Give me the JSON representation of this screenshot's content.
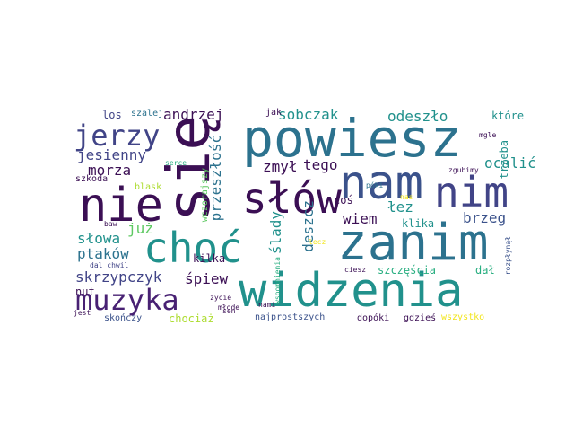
{
  "words": {
    "powiesz": "powiesz",
    "widzenia": "widzenia",
    "zanim": "zanim",
    "sie": "się",
    "slow": "słów",
    "nam": "nam",
    "nim": "nim",
    "nie": "nie",
    "choc": "choć",
    "muzyka": "muzyka",
    "jerzy": "jerzy",
    "andrzej": "andrzej",
    "sobczak": "sobczak",
    "odeszlo": "odeszło",
    "ktore": "które",
    "jesienny": "jesienny",
    "morza": "morza",
    "zmyl": "zmył",
    "tego": "tego",
    "przeszlosc": "przeszłość",
    "ocalic": "ocalić",
    "trzeba": "trzeba",
    "slady": "ślady",
    "deszcz": "deszcz",
    "wiem": "wiem",
    "lez": "łez",
    "brzeg": "brzeg",
    "juz": "już",
    "slowa": "słowa",
    "ptakow": "ptaków",
    "skrzypczyk": "skrzypczyk",
    "spiew": "śpiew",
    "kilka": "kilka",
    "klika": "klika",
    "szczescia": "szczęścia",
    "dal": "dał",
    "nut": "nut",
    "los": "los",
    "szalej": "szalej",
    "jak": "jak",
    "serce": "serce",
    "wczorajszy": "wczorajszy",
    "szkoda": "szkoda",
    "blask": "blask",
    "baw": "baw",
    "dal_chwil": "dal chwil",
    "zycie": "życie",
    "mlode": "młode",
    "sen": "sen",
    "jest": "jest",
    "skonczy": "skończy",
    "chociaz": "chociaż",
    "najprostszych": "najprostszych",
    "wspomnienia": "wspomnienia",
    "nami": "nami",
    "dopoki": "dopóki",
    "gdzies": "gdzieś",
    "wszystko": "wszystko",
    "ciesz": "ciesz",
    "lecz": "lecz",
    "rozplynal": "rozpłynął",
    "mgle": "mgle",
    "zgubimy": "zgubimy",
    "poki": "póki",
    "nas": "nas",
    "cos": "coś"
  }
}
